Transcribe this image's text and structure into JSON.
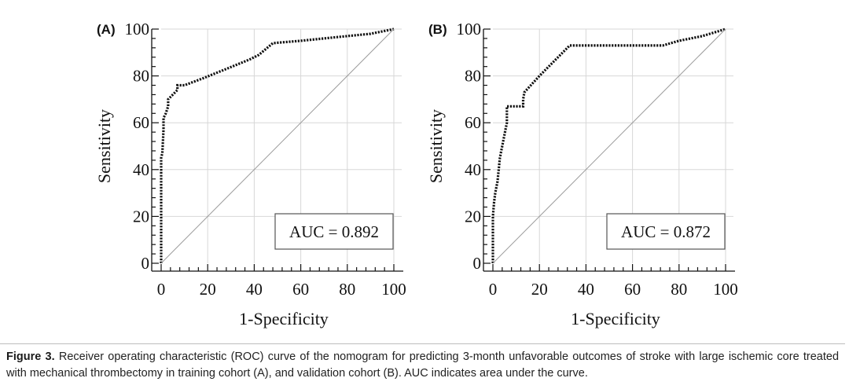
{
  "chart_data": [
    {
      "type": "line",
      "panel_label": "(A)",
      "xlabel": "1-Specificity",
      "ylabel": "Sensitivity",
      "xlim": [
        0,
        100
      ],
      "ylim": [
        0,
        100
      ],
      "xticks": [
        0,
        20,
        40,
        60,
        80,
        100
      ],
      "yticks": [
        0,
        20,
        40,
        60,
        80,
        100
      ],
      "grid": true,
      "annotation": "AUC = 0.892",
      "series": [
        {
          "style": "dotted",
          "x": [
            0,
            0,
            0,
            0.5,
            1,
            1,
            2,
            3,
            3,
            7,
            7,
            10,
            18,
            28,
            38,
            42,
            48,
            60,
            70,
            80,
            90,
            100
          ],
          "y": [
            0,
            20,
            45,
            47,
            57,
            62,
            64,
            67,
            70,
            74,
            76,
            76,
            79,
            83,
            87,
            89,
            94,
            95,
            96,
            97,
            98,
            100
          ]
        },
        {
          "style": "reference",
          "x": [
            0,
            100
          ],
          "y": [
            0,
            100
          ]
        }
      ]
    },
    {
      "type": "line",
      "panel_label": "(B)",
      "xlabel": "1-Specificity",
      "ylabel": "Sensitivity",
      "xlim": [
        0,
        100
      ],
      "ylim": [
        0,
        100
      ],
      "xticks": [
        0,
        20,
        40,
        60,
        80,
        100
      ],
      "yticks": [
        0,
        20,
        40,
        60,
        80,
        100
      ],
      "grid": true,
      "annotation": "AUC = 0.872",
      "series": [
        {
          "style": "dotted",
          "x": [
            0,
            0,
            0.5,
            1,
            2,
            3,
            5,
            6,
            6,
            13,
            13,
            13.5,
            20,
            33,
            50,
            73,
            80,
            90,
            100
          ],
          "y": [
            0,
            20,
            26,
            30,
            35,
            45,
            55,
            60,
            67,
            67,
            70,
            73,
            80,
            93,
            93,
            93,
            95,
            97,
            100
          ]
        },
        {
          "style": "reference",
          "x": [
            0,
            100
          ],
          "y": [
            0,
            100
          ]
        }
      ]
    }
  ],
  "caption": {
    "label": "Figure 3.",
    "text": "Receiver operating characteristic (ROC) curve of the nomogram for predicting 3-month unfavorable outcomes of stroke with large ischemic core treated with mechanical thrombectomy in training cohort (A), and validation cohort (B). AUC indicates area under the curve."
  },
  "colors": {
    "curve": "#111111",
    "reference_line": "#9a9a9a",
    "grid": "#d7d7d7",
    "axis": "#111111",
    "caption_rule": "#bdbdbd"
  }
}
